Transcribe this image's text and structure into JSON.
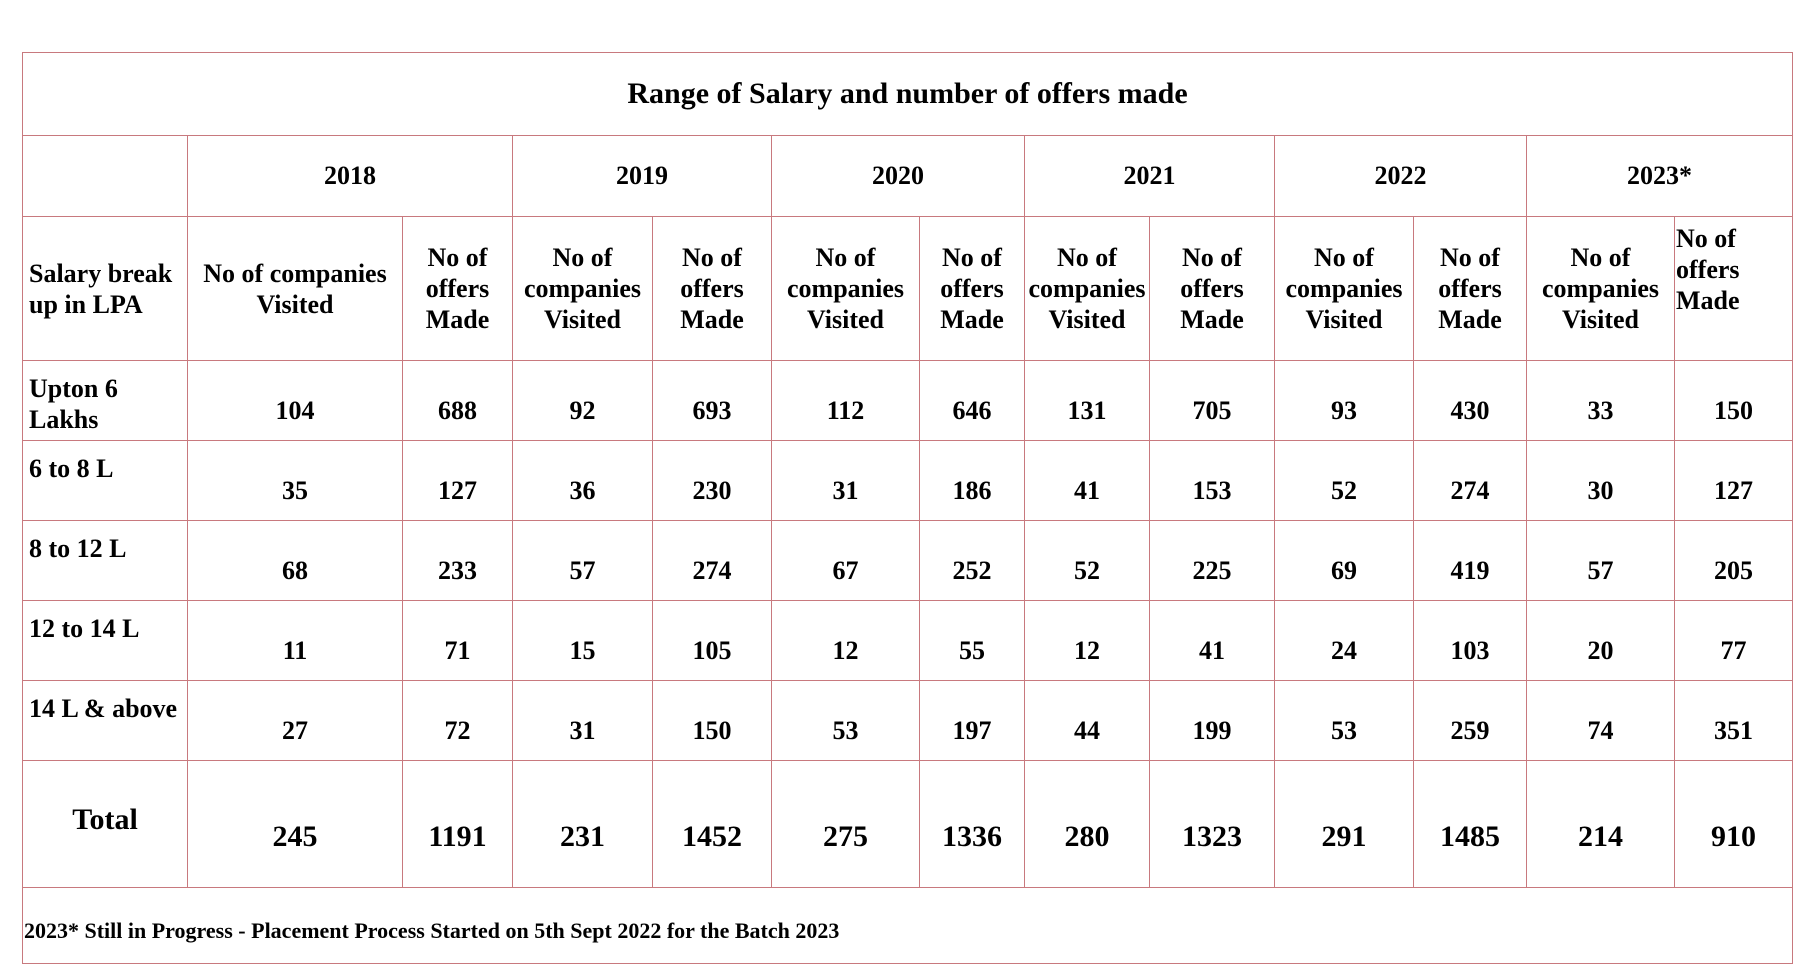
{
  "title": "Range of Salary and number of offers made",
  "years": [
    "2018",
    "2019",
    "2020",
    "2021",
    "2022",
    "2023*"
  ],
  "header": {
    "salary_label": "Salary break up in LPA",
    "companies_first": "No of companies Visited",
    "companies": "No of companies Visited",
    "offers": "No of offers Made"
  },
  "rows": [
    {
      "label": "Upton 6 Lakhs",
      "values": [
        "104",
        "688",
        "92",
        "693",
        "112",
        "646",
        "131",
        "705",
        "93",
        "430",
        "33",
        "150"
      ]
    },
    {
      "label": "6 to 8 L",
      "values": [
        "35",
        "127",
        "36",
        "230",
        "31",
        "186",
        "41",
        "153",
        "52",
        "274",
        "30",
        "127"
      ]
    },
    {
      "label": "8 to 12 L",
      "values": [
        "68",
        "233",
        "57",
        "274",
        "67",
        "252",
        "52",
        "225",
        "69",
        "419",
        "57",
        "205"
      ]
    },
    {
      "label": "12 to 14 L",
      "values": [
        "11",
        "71",
        "15",
        "105",
        "12",
        "55",
        "12",
        "41",
        "24",
        "103",
        "20",
        "77"
      ]
    },
    {
      "label": "14 L & above",
      "values": [
        "27",
        "72",
        "31",
        "150",
        "53",
        "197",
        "44",
        "199",
        "53",
        "259",
        "74",
        "351"
      ]
    }
  ],
  "total": {
    "label": "Total",
    "values": [
      "245",
      "1191",
      "231",
      "1452",
      "275",
      "1336",
      "280",
      "1323",
      "291",
      "1485",
      "214",
      "910"
    ]
  },
  "note": "2023* Still in Progress - Placement Process Started on 5th Sept 2022 for the Batch 2023",
  "colors": {
    "border": "#c8797e",
    "text": "#000000",
    "background": "#ffffff"
  }
}
